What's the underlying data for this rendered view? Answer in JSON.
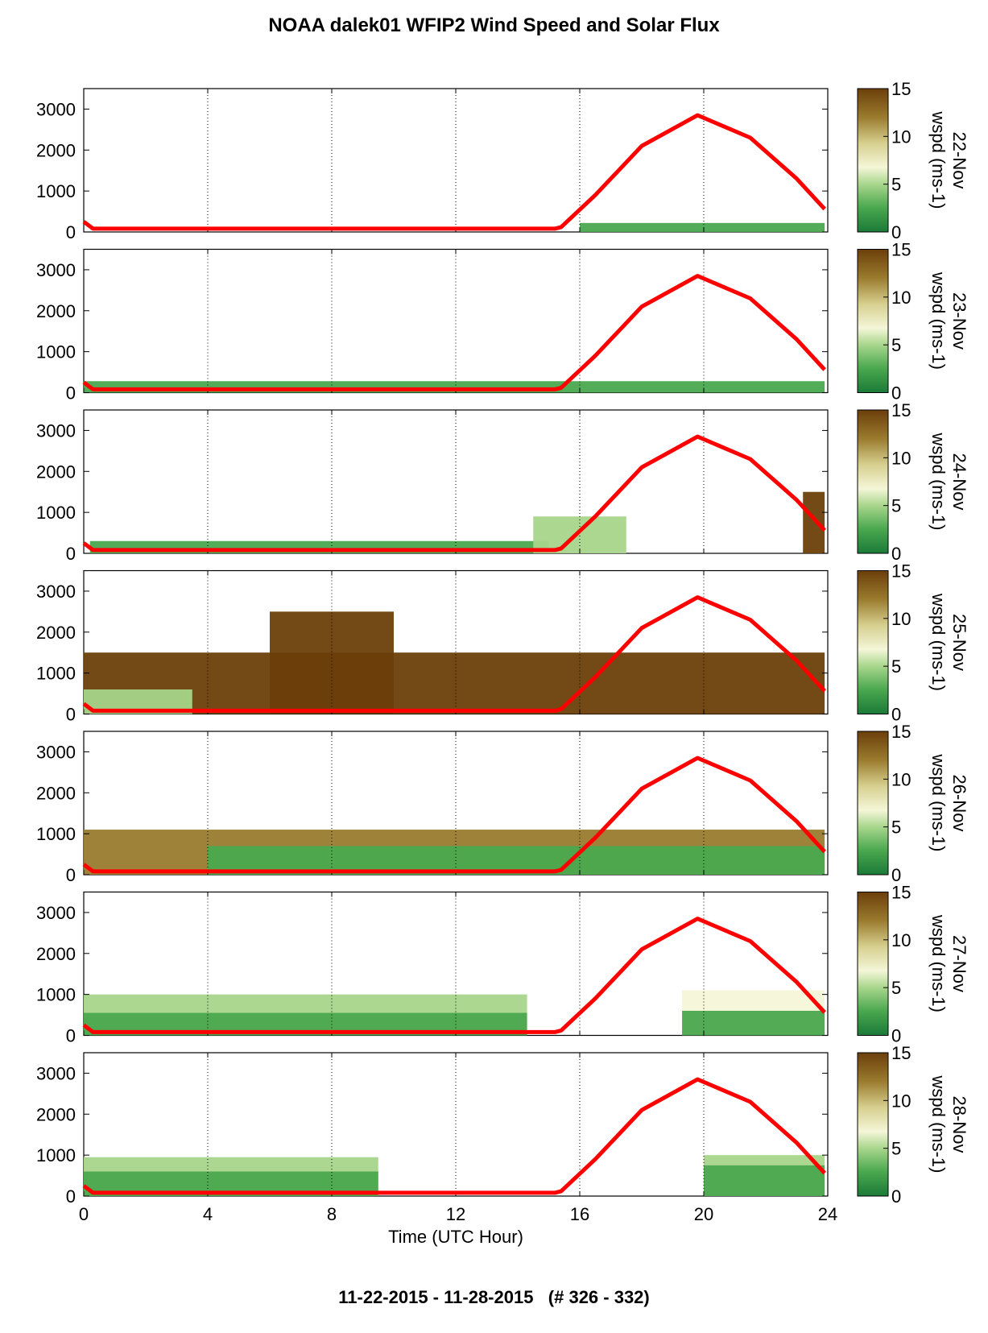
{
  "title": "NOAA dalek01 WFIP2 Wind Speed and Solar Flux",
  "footer": "11-22-2015 - 11-28-2015   (# 326 - 332)",
  "colors": {
    "solar_line": "#ff0000",
    "grid": "#000000",
    "colormap": [
      "#1b7a38",
      "#4aa84e",
      "#a6d58a",
      "#f4f6d8",
      "#d6cf8e",
      "#9a7b2e",
      "#6b3f0a"
    ]
  },
  "chart_data": [
    {
      "type": "heatmap",
      "panel_label": "22-Nov",
      "xlabel": "",
      "ylabel": "",
      "xlim": [
        0,
        24
      ],
      "ylim": [
        0,
        3500
      ],
      "x_ticks": [
        0,
        4,
        8,
        12,
        16,
        20,
        24
      ],
      "y_ticks": [
        0,
        1000,
        2000,
        3000
      ],
      "colorbar": {
        "label": "wspd (ms-1)",
        "ticks": [
          0,
          5,
          10,
          15
        ],
        "range": [
          0,
          15
        ]
      },
      "solar_flux_curve": {
        "x": [
          0,
          0.3,
          15.2,
          15.4,
          16.5,
          18,
          19.8,
          21.5,
          23,
          23.9
        ],
        "y": [
          250,
          80,
          80,
          120,
          900,
          2100,
          2850,
          2300,
          1300,
          560
        ]
      },
      "wind_regions": [
        {
          "x": [
            16.0,
            23.9
          ],
          "top_m": 220,
          "wspd": 2
        }
      ]
    },
    {
      "type": "heatmap",
      "panel_label": "23-Nov",
      "xlabel": "",
      "ylabel": "",
      "xlim": [
        0,
        24
      ],
      "ylim": [
        0,
        3500
      ],
      "x_ticks": [
        0,
        4,
        8,
        12,
        16,
        20,
        24
      ],
      "y_ticks": [
        0,
        1000,
        2000,
        3000
      ],
      "colorbar": {
        "label": "wspd (ms-1)",
        "ticks": [
          0,
          5,
          10,
          15
        ],
        "range": [
          0,
          15
        ]
      },
      "solar_flux_curve": {
        "x": [
          0,
          0.3,
          15.2,
          15.4,
          16.5,
          18,
          19.8,
          21.5,
          23,
          23.9
        ],
        "y": [
          250,
          80,
          80,
          120,
          900,
          2100,
          2850,
          2300,
          1300,
          560
        ]
      },
      "wind_regions": [
        {
          "x": [
            0.0,
            23.9
          ],
          "top_m": 280,
          "wspd": 2
        }
      ]
    },
    {
      "type": "heatmap",
      "panel_label": "24-Nov",
      "xlabel": "",
      "ylabel": "",
      "xlim": [
        0,
        24
      ],
      "ylim": [
        0,
        3500
      ],
      "x_ticks": [
        0,
        4,
        8,
        12,
        16,
        20,
        24
      ],
      "y_ticks": [
        0,
        1000,
        2000,
        3000
      ],
      "colorbar": {
        "label": "wspd (ms-1)",
        "ticks": [
          0,
          5,
          10,
          15
        ],
        "range": [
          0,
          15
        ]
      },
      "solar_flux_curve": {
        "x": [
          0,
          0.3,
          15.2,
          15.4,
          16.5,
          18,
          19.8,
          21.5,
          23,
          23.9
        ],
        "y": [
          250,
          80,
          80,
          120,
          900,
          2100,
          2850,
          2300,
          1300,
          560
        ]
      },
      "wind_regions": [
        {
          "x": [
            0.2,
            15.0
          ],
          "top_m": 300,
          "wspd": 2
        },
        {
          "x": [
            14.5,
            17.5
          ],
          "top_m": 900,
          "wspd": 6
        },
        {
          "x": [
            23.2,
            23.9
          ],
          "top_m": 1500,
          "wspd": 14
        }
      ]
    },
    {
      "type": "heatmap",
      "panel_label": "25-Nov",
      "xlabel": "",
      "ylabel": "",
      "xlim": [
        0,
        24
      ],
      "ylim": [
        0,
        3500
      ],
      "x_ticks": [
        0,
        4,
        8,
        12,
        16,
        20,
        24
      ],
      "y_ticks": [
        0,
        1000,
        2000,
        3000
      ],
      "colorbar": {
        "label": "wspd (ms-1)",
        "ticks": [
          0,
          5,
          10,
          15
        ],
        "range": [
          0,
          15
        ]
      },
      "solar_flux_curve": {
        "x": [
          0,
          0.3,
          15.2,
          15.4,
          16.5,
          18,
          19.8,
          21.5,
          23,
          23.9
        ],
        "y": [
          250,
          80,
          80,
          120,
          900,
          2100,
          2850,
          2300,
          1300,
          560
        ]
      },
      "wind_regions": [
        {
          "x": [
            0.0,
            23.9
          ],
          "top_m": 1500,
          "wspd": 15
        },
        {
          "x": [
            6.0,
            10.0
          ],
          "top_m": 2500,
          "wspd": 15
        },
        {
          "x": [
            0.0,
            3.5
          ],
          "top_m": 600,
          "wspd": 5
        }
      ]
    },
    {
      "type": "heatmap",
      "panel_label": "26-Nov",
      "xlabel": "",
      "ylabel": "",
      "xlim": [
        0,
        24
      ],
      "ylim": [
        0,
        3500
      ],
      "x_ticks": [
        0,
        4,
        8,
        12,
        16,
        20,
        24
      ],
      "y_ticks": [
        0,
        1000,
        2000,
        3000
      ],
      "colorbar": {
        "label": "wspd (ms-1)",
        "ticks": [
          0,
          5,
          10,
          15
        ],
        "range": [
          0,
          15
        ]
      },
      "solar_flux_curve": {
        "x": [
          0,
          0.3,
          15.2,
          15.4,
          16.5,
          18,
          19.8,
          21.5,
          23,
          23.9
        ],
        "y": [
          250,
          80,
          80,
          120,
          900,
          2100,
          2850,
          2300,
          1300,
          560
        ]
      },
      "wind_regions": [
        {
          "x": [
            0.0,
            23.9
          ],
          "top_m": 1100,
          "wspd": 12
        },
        {
          "x": [
            4.0,
            23.9
          ],
          "top_m": 700,
          "wspd": 3
        }
      ]
    },
    {
      "type": "heatmap",
      "panel_label": "27-Nov",
      "xlabel": "",
      "ylabel": "",
      "xlim": [
        0,
        24
      ],
      "ylim": [
        0,
        3500
      ],
      "x_ticks": [
        0,
        4,
        8,
        12,
        16,
        20,
        24
      ],
      "y_ticks": [
        0,
        1000,
        2000,
        3000
      ],
      "colorbar": {
        "label": "wspd (ms-1)",
        "ticks": [
          0,
          5,
          10,
          15
        ],
        "range": [
          0,
          15
        ]
      },
      "solar_flux_curve": {
        "x": [
          0,
          0.3,
          15.2,
          15.4,
          16.5,
          18,
          19.8,
          21.5,
          23,
          23.9
        ],
        "y": [
          250,
          80,
          80,
          120,
          900,
          2100,
          2850,
          2300,
          1300,
          560
        ]
      },
      "wind_regions": [
        {
          "x": [
            0.0,
            14.3
          ],
          "top_m": 1000,
          "wspd": 6
        },
        {
          "x": [
            0.0,
            14.3
          ],
          "top_m": 550,
          "wspd": 2
        },
        {
          "x": [
            19.3,
            23.9
          ],
          "top_m": 1100,
          "wspd": 7
        },
        {
          "x": [
            19.3,
            23.9
          ],
          "top_m": 600,
          "wspd": 2
        }
      ]
    },
    {
      "type": "heatmap",
      "panel_label": "28-Nov",
      "xlabel": "Time (UTC Hour)",
      "ylabel": "",
      "xlim": [
        0,
        24
      ],
      "ylim": [
        0,
        3500
      ],
      "x_ticks": [
        0,
        4,
        8,
        12,
        16,
        20,
        24
      ],
      "y_ticks": [
        0,
        1000,
        2000,
        3000
      ],
      "colorbar": {
        "label": "wspd (ms-1)",
        "ticks": [
          0,
          5,
          10,
          15
        ],
        "range": [
          0,
          15
        ]
      },
      "solar_flux_curve": {
        "x": [
          0,
          0.3,
          15.2,
          15.4,
          16.5,
          18,
          19.8,
          21.5,
          23,
          23.9
        ],
        "y": [
          250,
          80,
          80,
          120,
          900,
          2100,
          2850,
          2300,
          1300,
          560
        ]
      },
      "wind_regions": [
        {
          "x": [
            0.0,
            9.5
          ],
          "top_m": 950,
          "wspd": 6
        },
        {
          "x": [
            0.0,
            9.5
          ],
          "top_m": 600,
          "wspd": 2
        },
        {
          "x": [
            20.0,
            23.9
          ],
          "top_m": 1000,
          "wspd": 6
        },
        {
          "x": [
            20.0,
            23.9
          ],
          "top_m": 750,
          "wspd": 2
        }
      ]
    }
  ]
}
